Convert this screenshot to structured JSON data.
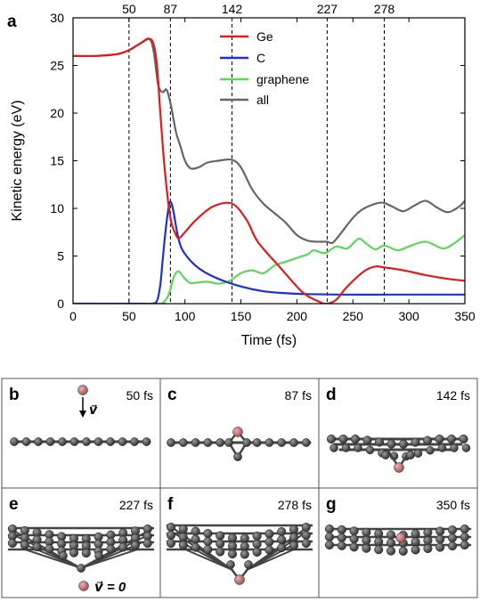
{
  "panel_a_label": "a",
  "chart_data": {
    "type": "line",
    "xlabel": "Time (fs)",
    "ylabel": "Kinetic energy (eV)",
    "xlim": [
      0,
      350
    ],
    "ylim": [
      0,
      30
    ],
    "xticks": [
      0,
      50,
      100,
      150,
      200,
      250,
      300,
      350
    ],
    "yticks": [
      0,
      5,
      10,
      15,
      20,
      25,
      30
    ],
    "top_ticks": [
      50,
      87,
      142,
      227,
      278
    ],
    "vlines": [
      50,
      87,
      142,
      227,
      278
    ],
    "legend_position": "top-right",
    "series": [
      {
        "name": "Ge",
        "color": "#e01b1b",
        "x": [
          0,
          20,
          40,
          50,
          60,
          68,
          72,
          75,
          78,
          82,
          87,
          92,
          95,
          100,
          110,
          125,
          142,
          155,
          165,
          185,
          205,
          220,
          227,
          235,
          245,
          260,
          270,
          278,
          295,
          315,
          335,
          350
        ],
        "y": [
          26,
          26,
          26.2,
          26.6,
          27.3,
          27.8,
          27.2,
          25,
          20,
          14,
          9,
          7.2,
          6.9,
          7.5,
          8.8,
          10.2,
          10.5,
          8.8,
          6.5,
          3.8,
          1.2,
          0.2,
          0,
          0.4,
          1.8,
          3.4,
          3.9,
          3.8,
          3.5,
          3.0,
          2.6,
          2.4
        ]
      },
      {
        "name": "C",
        "color": "#1f2fd6",
        "x": [
          0,
          60,
          70,
          75,
          78,
          80,
          83,
          86,
          88,
          90,
          93,
          97,
          105,
          115,
          130,
          150,
          170,
          190,
          210,
          240,
          280,
          320,
          350
        ],
        "y": [
          0,
          0,
          0,
          0.3,
          2,
          4.5,
          8,
          10.5,
          10.5,
          9.5,
          7.5,
          5.8,
          4.5,
          3.5,
          2.6,
          1.8,
          1.3,
          1.1,
          1,
          0.95,
          0.95,
          0.95,
          0.95
        ]
      },
      {
        "name": "graphene",
        "color": "#5ed65e",
        "x": [
          0,
          75,
          80,
          84,
          87,
          90,
          94,
          98,
          104,
          110,
          120,
          130,
          140,
          150,
          160,
          170,
          180,
          190,
          200,
          210,
          215,
          225,
          235,
          245,
          255,
          262,
          270,
          278,
          290,
          300,
          315,
          330,
          340,
          350
        ],
        "y": [
          0,
          0,
          0.1,
          0.6,
          1.5,
          2.8,
          3.4,
          2.9,
          2.2,
          2.2,
          2.3,
          2.1,
          2.4,
          3.2,
          3.5,
          3.2,
          4.0,
          4.4,
          4.8,
          5.2,
          5.6,
          5.3,
          6.0,
          5.8,
          6.8,
          6.3,
          5.7,
          6.1,
          5.6,
          6.0,
          6.5,
          5.8,
          6.3,
          7.2
        ]
      },
      {
        "name": "all",
        "color": "#666666",
        "x": [
          0,
          20,
          40,
          50,
          60,
          68,
          72,
          76,
          80,
          83,
          85,
          88,
          92,
          96,
          100,
          105,
          112,
          120,
          130,
          142,
          150,
          160,
          170,
          180,
          190,
          200,
          210,
          220,
          227,
          232,
          240,
          250,
          260,
          275,
          285,
          295,
          305,
          315,
          325,
          335,
          345,
          350
        ],
        "y": [
          26,
          26,
          26.2,
          26.6,
          27.3,
          27.8,
          26.5,
          23,
          22.2,
          22.5,
          22,
          20.5,
          18,
          16.5,
          15,
          14.2,
          14.3,
          14.8,
          15,
          15.1,
          14.3,
          12,
          10.5,
          9.5,
          8.5,
          7.2,
          6.6,
          6.5,
          6.5,
          6.4,
          7.5,
          9.0,
          10,
          10.6,
          10.2,
          9.7,
          10.3,
          10.8,
          10.1,
          9.6,
          10.2,
          10.8
        ]
      }
    ]
  },
  "panels": [
    {
      "label": "b",
      "time": "50 fs",
      "annotation": "v⃗"
    },
    {
      "label": "c",
      "time": "87 fs"
    },
    {
      "label": "d",
      "time": "142 fs"
    },
    {
      "label": "e",
      "time": "227 fs",
      "annotation": "v⃗ = 0"
    },
    {
      "label": "f",
      "time": "278 fs"
    },
    {
      "label": "g",
      "time": "350 fs"
    }
  ],
  "colors": {
    "atom_c": "#555555",
    "atom_ge": "#c98080",
    "bond": "#444444"
  }
}
